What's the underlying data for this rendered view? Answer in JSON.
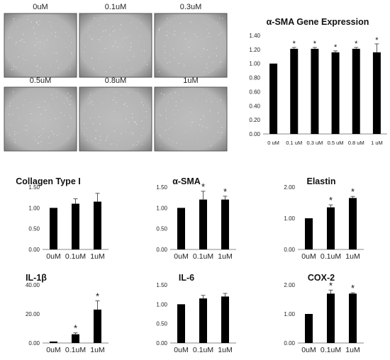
{
  "micrographs": {
    "labels": [
      "0uM",
      "0.1uM",
      "0.3uM",
      "0.5uM",
      "0.8uM",
      "1uM"
    ],
    "background_color": "#b4b4b4",
    "border_color": "#555555"
  },
  "chart_data": [
    {
      "type": "bar",
      "title": "α-SMA Gene Expression",
      "categories": [
        "0 uM",
        "0.1 uM",
        "0.3 uM",
        "0.5 uM",
        "0.8 uM",
        "1 uM"
      ],
      "values": [
        1.0,
        1.21,
        1.21,
        1.16,
        1.21,
        1.16
      ],
      "errors": [
        0,
        0.02,
        0.02,
        0.02,
        0.02,
        0.12
      ],
      "significance": [
        "",
        "*",
        "*",
        "*",
        "*",
        "*"
      ],
      "yticks": [
        "0.00",
        "0.20",
        "0.40",
        "0.60",
        "0.80",
        "1.00",
        "1.20",
        "1.40"
      ],
      "ylim": [
        0,
        1.4
      ],
      "grid": false,
      "bar_color": "#000000"
    },
    {
      "type": "bar",
      "title": "Collagen Type I",
      "categories": [
        "0uM",
        "0.1uM",
        "1uM"
      ],
      "values": [
        1.0,
        1.1,
        1.15
      ],
      "errors": [
        0,
        0.12,
        0.2
      ],
      "significance": [
        "",
        "",
        ""
      ],
      "yticks": [
        "0.00",
        "0.50",
        "1.00",
        "1.50"
      ],
      "ylim": [
        0,
        1.5
      ],
      "bar_color": "#000000"
    },
    {
      "type": "bar",
      "title": "α-SMA",
      "categories": [
        "0uM",
        "0.1uM",
        "1uM"
      ],
      "values": [
        1.0,
        1.2,
        1.2
      ],
      "errors": [
        0,
        0.2,
        0.08
      ],
      "significance": [
        "",
        "*",
        "*"
      ],
      "yticks": [
        "0.00",
        "0.50",
        "1.00",
        "1.50"
      ],
      "ylim": [
        0,
        1.5
      ],
      "bar_color": "#000000"
    },
    {
      "type": "bar",
      "title": "Elastin",
      "categories": [
        "0uM",
        "0.1uM",
        "1uM"
      ],
      "values": [
        1.0,
        1.35,
        1.65
      ],
      "errors": [
        0,
        0.08,
        0.05
      ],
      "significance": [
        "",
        "*",
        "*"
      ],
      "yticks": [
        "0.00",
        "1.00",
        "2.00"
      ],
      "ylim": [
        0,
        2.0
      ],
      "bar_color": "#000000"
    },
    {
      "type": "bar",
      "title": "IL-1β",
      "categories": [
        "0uM",
        "0.1uM",
        "1uM"
      ],
      "values": [
        1.0,
        6.0,
        23.0
      ],
      "errors": [
        0,
        1.0,
        6.0
      ],
      "significance": [
        "",
        "*",
        "*"
      ],
      "yticks": [
        "0.00",
        "20.00",
        "40.00"
      ],
      "ylim": [
        0,
        40
      ],
      "bar_color": "#000000"
    },
    {
      "type": "bar",
      "title": "IL-6",
      "categories": [
        "0uM",
        "0.1uM",
        "1uM"
      ],
      "values": [
        1.0,
        1.15,
        1.2
      ],
      "errors": [
        0,
        0.08,
        0.08
      ],
      "significance": [
        "",
        "",
        ""
      ],
      "yticks": [
        "0.00",
        "0.50",
        "1.00",
        "1.50"
      ],
      "ylim": [
        0,
        1.5
      ],
      "bar_color": "#000000"
    },
    {
      "type": "bar",
      "title": "COX-2",
      "categories": [
        "0uM",
        "0.1uM",
        "1uM"
      ],
      "values": [
        1.0,
        1.7,
        1.7
      ],
      "errors": [
        0,
        0.12,
        0.03
      ],
      "significance": [
        "",
        "*",
        "*"
      ],
      "yticks": [
        "0.00",
        "1.00",
        "2.00"
      ],
      "ylim": [
        0,
        2.0
      ],
      "bar_color": "#000000"
    }
  ]
}
